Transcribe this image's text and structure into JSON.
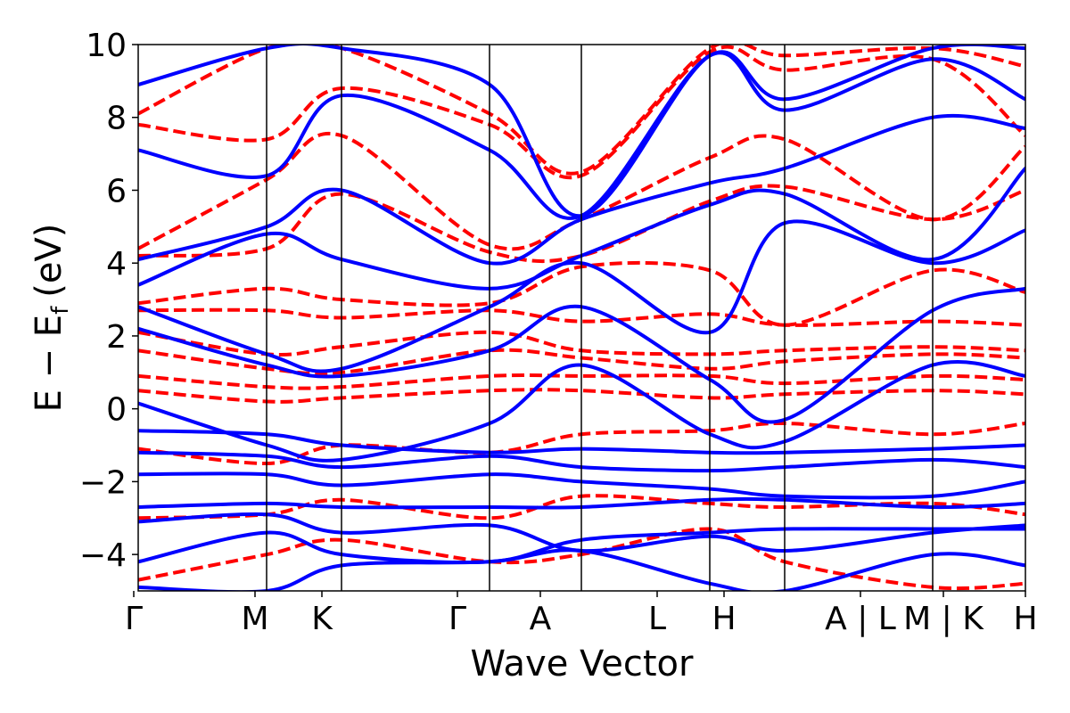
{
  "chart_data": {
    "type": "line",
    "xlabel": "Wave Vector",
    "ylabel": "E − E",
    "ylabel_subscript": "f",
    "ylabel_unit": "(eV)",
    "ylim": [
      -5,
      10
    ],
    "xlim": [
      0,
      7.37
    ],
    "y_ticks": [
      -4,
      -2,
      0,
      2,
      4,
      6,
      8,
      10
    ],
    "y_tick_labels": [
      "−4",
      "−2",
      "0",
      "2",
      "4",
      "6",
      "8",
      "10"
    ],
    "k_points": [
      {
        "x": 0.0,
        "label": "Γ"
      },
      {
        "x": 1.07,
        "label": "M"
      },
      {
        "x": 1.69,
        "label": "K"
      },
      {
        "x": 2.92,
        "label": "Γ"
      },
      {
        "x": 3.68,
        "label": "A"
      },
      {
        "x": 4.75,
        "label": "L"
      },
      {
        "x": 5.37,
        "label": "H"
      },
      {
        "x": 6.6,
        "label": "A | L"
      },
      {
        "x": 7.37,
        "label": "M | K"
      },
      {
        "x": 7.37,
        "label": "H"
      }
    ],
    "k_label_positions": [
      0.0,
      1.07,
      1.69,
      2.92,
      3.68,
      4.75,
      5.37,
      6.43,
      7.02,
      8.08
    ],
    "grid": false,
    "series": [
      {
        "style": "solid",
        "color": "#0000ff",
        "bands": [
          {
            "x": [
              0,
              1.07,
              1.69,
              2.92,
              3.68,
              4.75,
              5.37,
              6.6,
              7.37
            ],
            "y": [
              -4.9,
              -5.0,
              -4.3,
              -4.2,
              -3.9,
              -4.8,
              -5.0,
              -4.0,
              -4.3
            ]
          },
          {
            "x": [
              0,
              1.07,
              1.69,
              2.92,
              3.68,
              4.75,
              5.37,
              6.6,
              7.37
            ],
            "y": [
              -4.2,
              -3.4,
              -4.0,
              -4.2,
              -3.6,
              -3.4,
              -3.3,
              -3.3,
              -3.3
            ]
          },
          {
            "x": [
              0,
              1.07,
              1.69,
              2.92,
              3.68,
              4.75,
              5.37,
              6.6,
              7.37
            ],
            "y": [
              -3.1,
              -2.9,
              -3.4,
              -3.2,
              -3.9,
              -3.5,
              -3.9,
              -3.4,
              -3.2
            ]
          },
          {
            "x": [
              0,
              1.07,
              1.69,
              2.92,
              3.68,
              4.75,
              5.37,
              6.6,
              7.37
            ],
            "y": [
              -2.7,
              -2.6,
              -2.7,
              -2.7,
              -2.7,
              -2.5,
              -2.5,
              -2.7,
              -2.6
            ]
          },
          {
            "x": [
              0,
              1.07,
              1.69,
              2.92,
              3.68,
              4.75,
              5.37,
              6.6,
              7.37
            ],
            "y": [
              -1.8,
              -1.8,
              -2.1,
              -1.8,
              -2.0,
              -2.2,
              -2.4,
              -2.4,
              -2.0
            ]
          },
          {
            "x": [
              0,
              1.07,
              1.69,
              2.92,
              3.68,
              4.75,
              5.37,
              6.6,
              7.37
            ],
            "y": [
              -1.2,
              -1.3,
              -1.6,
              -1.3,
              -1.6,
              -1.7,
              -1.6,
              -1.4,
              -1.6
            ]
          },
          {
            "x": [
              0,
              1.07,
              1.69,
              2.92,
              3.68,
              4.75,
              5.37,
              6.6,
              7.37
            ],
            "y": [
              -0.6,
              -0.7,
              -1.0,
              -1.2,
              -1.1,
              -1.2,
              -1.2,
              -1.1,
              -1.0
            ]
          },
          {
            "x": [
              0,
              1.07,
              1.69,
              2.92,
              3.68,
              4.75,
              5.37,
              6.6,
              7.37
            ],
            "y": [
              0.15,
              -1.0,
              -1.4,
              -0.4,
              1.2,
              -0.7,
              -0.9,
              1.2,
              0.9
            ]
          },
          {
            "x": [
              0,
              1.07,
              1.69,
              2.92,
              3.68,
              4.75,
              5.37,
              6.6,
              7.37
            ],
            "y": [
              2.2,
              1.2,
              0.9,
              1.6,
              2.8,
              0.8,
              -0.3,
              2.7,
              3.3
            ]
          },
          {
            "x": [
              0,
              1.07,
              1.69,
              2.92,
              3.68,
              4.75,
              5.37,
              6.6,
              7.37
            ],
            "y": [
              2.8,
              1.5,
              1.1,
              2.8,
              4.0,
              2.1,
              5.1,
              4.0,
              4.9
            ]
          },
          {
            "x": [
              0,
              1.07,
              1.69,
              2.92,
              3.68,
              4.75,
              5.37,
              6.6,
              7.37
            ],
            "y": [
              3.4,
              4.8,
              4.1,
              3.3,
              4.2,
              5.6,
              5.9,
              4.1,
              6.6
            ]
          },
          {
            "x": [
              0,
              1.07,
              1.69,
              2.92,
              3.68,
              4.75,
              5.37,
              6.6,
              7.37
            ],
            "y": [
              4.1,
              5.0,
              6.0,
              4.0,
              5.2,
              6.2,
              6.6,
              8.0,
              7.7
            ]
          },
          {
            "x": [
              0,
              1.07,
              1.69,
              2.92,
              3.68,
              4.75,
              5.37,
              6.6,
              7.37
            ],
            "y": [
              7.1,
              6.4,
              8.6,
              7.1,
              5.3,
              9.7,
              8.2,
              9.6,
              8.5
            ]
          },
          {
            "x": [
              0,
              1.07,
              1.69,
              2.92,
              3.68,
              4.75,
              5.37,
              6.6,
              7.37
            ],
            "y": [
              8.9,
              9.9,
              9.9,
              8.9,
              5.3,
              9.7,
              8.5,
              9.9,
              9.9
            ]
          }
        ]
      },
      {
        "style": "dashed",
        "color": "#ff0000",
        "bands": [
          {
            "x": [
              0,
              1.07,
              1.69,
              2.92,
              3.68,
              4.75,
              5.37,
              6.6,
              7.37
            ],
            "y": [
              -4.7,
              -4.0,
              -3.6,
              -4.2,
              -4.0,
              -3.3,
              -4.2,
              -4.9,
              -4.8
            ]
          },
          {
            "x": [
              0,
              1.07,
              1.69,
              2.92,
              3.68,
              4.75,
              5.37,
              6.6,
              7.37
            ],
            "y": [
              -3.0,
              -2.9,
              -2.5,
              -3.0,
              -2.4,
              -2.6,
              -2.7,
              -2.6,
              -2.9
            ]
          },
          {
            "x": [
              0,
              1.07,
              1.69,
              2.92,
              3.68,
              4.75,
              5.37,
              6.6,
              7.37
            ],
            "y": [
              -1.1,
              -1.5,
              -1.0,
              -1.2,
              -0.7,
              -0.6,
              -0.4,
              -0.7,
              -0.4
            ]
          },
          {
            "x": [
              0,
              1.07,
              1.69,
              2.92,
              3.68,
              4.75,
              5.37,
              6.6,
              7.37
            ],
            "y": [
              0.5,
              0.2,
              0.3,
              0.5,
              0.5,
              0.3,
              0.4,
              0.5,
              0.4
            ]
          },
          {
            "x": [
              0,
              1.07,
              1.69,
              2.92,
              3.68,
              4.75,
              5.37,
              6.6,
              7.37
            ],
            "y": [
              0.9,
              0.6,
              0.6,
              0.9,
              0.9,
              0.9,
              0.7,
              0.9,
              0.8
            ]
          },
          {
            "x": [
              0,
              1.07,
              1.69,
              2.92,
              3.68,
              4.75,
              5.37,
              6.6,
              7.37
            ],
            "y": [
              1.6,
              1.1,
              1.0,
              1.6,
              1.4,
              1.1,
              1.3,
              1.5,
              1.4
            ]
          },
          {
            "x": [
              0,
              1.07,
              1.69,
              2.92,
              3.68,
              4.75,
              5.37,
              6.6,
              7.37
            ],
            "y": [
              2.1,
              1.5,
              1.7,
              2.1,
              1.6,
              1.5,
              1.6,
              1.7,
              1.6
            ]
          },
          {
            "x": [
              0,
              1.07,
              1.69,
              2.92,
              3.68,
              4.75,
              5.37,
              6.6,
              7.37
            ],
            "y": [
              2.7,
              2.7,
              2.5,
              2.7,
              2.4,
              2.6,
              2.3,
              2.4,
              2.3
            ]
          },
          {
            "x": [
              0,
              1.07,
              1.69,
              2.92,
              3.68,
              4.75,
              5.37,
              6.6,
              7.37
            ],
            "y": [
              2.9,
              3.3,
              3.0,
              2.9,
              3.9,
              3.8,
              2.3,
              3.8,
              3.2
            ]
          },
          {
            "x": [
              0,
              1.07,
              1.69,
              2.92,
              3.68,
              4.75,
              5.37,
              6.6,
              7.37
            ],
            "y": [
              4.2,
              4.4,
              5.9,
              4.3,
              4.2,
              5.7,
              6.1,
              5.2,
              6.0
            ]
          },
          {
            "x": [
              0,
              1.07,
              1.69,
              2.92,
              3.68,
              4.75,
              5.37,
              6.6,
              7.37
            ],
            "y": [
              4.4,
              6.3,
              7.5,
              4.5,
              5.2,
              6.9,
              7.4,
              5.2,
              7.2
            ]
          },
          {
            "x": [
              0,
              1.07,
              1.69,
              2.92,
              3.68,
              4.75,
              5.37,
              6.6,
              7.37
            ],
            "y": [
              7.8,
              7.4,
              8.8,
              7.8,
              6.4,
              9.8,
              9.3,
              9.6,
              7.5
            ]
          },
          {
            "x": [
              0,
              1.07,
              1.69,
              2.92,
              3.68,
              4.75,
              5.37,
              6.6,
              7.37
            ],
            "y": [
              8.1,
              9.9,
              9.9,
              8.1,
              6.5,
              9.9,
              9.7,
              9.9,
              9.4
            ]
          }
        ]
      }
    ]
  }
}
